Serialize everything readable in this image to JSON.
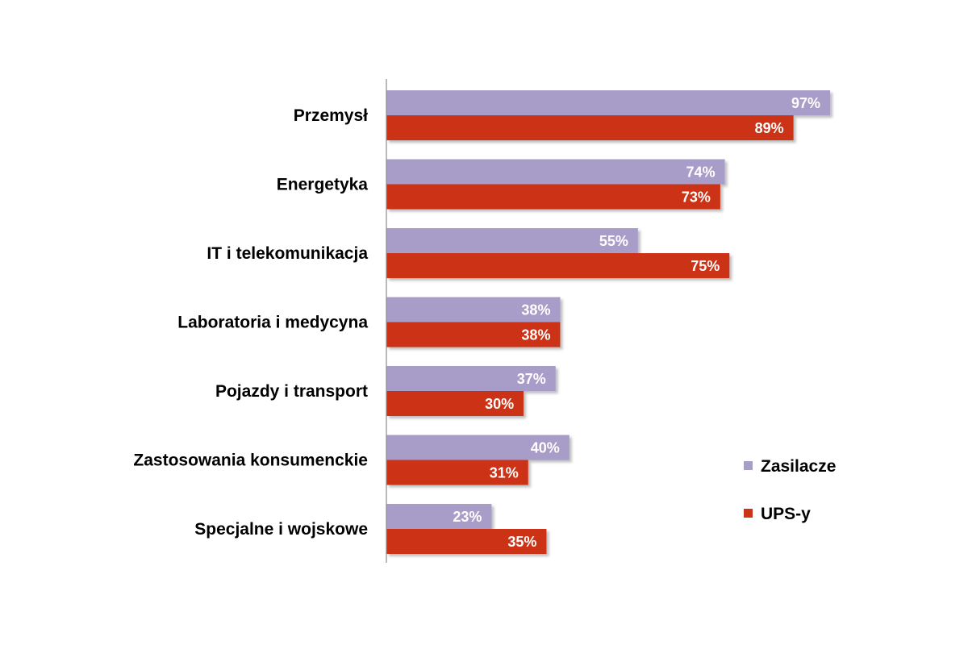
{
  "chart_data": {
    "type": "bar",
    "orientation": "horizontal",
    "categories": [
      "Przemysł",
      "Energetyka",
      "IT i telekomunikacja",
      "Laboratoria i medycyna",
      "Pojazdy i transport",
      "Zastosowania konsumenckie",
      "Specjalne i wojskowe"
    ],
    "series": [
      {
        "name": "Zasilacze",
        "color": "#a89cc8",
        "values": [
          97,
          74,
          55,
          38,
          37,
          40,
          23
        ],
        "labels": [
          "97%",
          "74%",
          "55%",
          "38%",
          "37%",
          "40%",
          "23%"
        ]
      },
      {
        "name": "UPS-y",
        "color": "#cc3318",
        "values": [
          89,
          73,
          75,
          38,
          30,
          31,
          35
        ],
        "labels": [
          "89%",
          "73%",
          "75%",
          "38%",
          "30%",
          "31%",
          "35%"
        ]
      }
    ],
    "xlim": [
      0,
      100
    ],
    "grid": false,
    "legend": "bottom-right"
  }
}
